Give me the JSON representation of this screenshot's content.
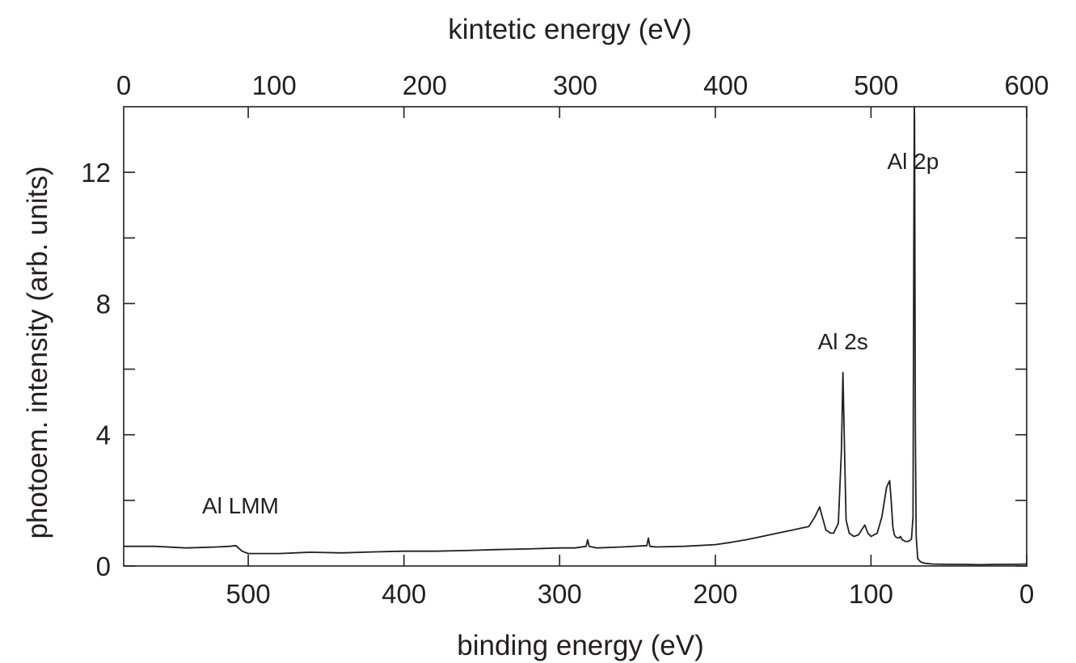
{
  "chart_data": {
    "type": "line",
    "title": "",
    "xlabel": "binding energy  (eV)",
    "x2label": "kintetic energy  (eV)",
    "ylabel": "photoem. intensity (arb. units)",
    "xlim": [
      580,
      0
    ],
    "x2lim": [
      0,
      600
    ],
    "ylim": [
      0,
      14
    ],
    "xticks": [
      "500",
      "400",
      "300",
      "200",
      "100",
      "0"
    ],
    "x2ticks": [
      "0",
      "100",
      "200",
      "300",
      "400",
      "500",
      "600"
    ],
    "yticks": [
      "0",
      "4",
      "8",
      "12"
    ],
    "grid": false,
    "line_color": "#231f20",
    "annotations": [
      {
        "text": "Al LMM",
        "x": 505,
        "y": 1.6
      },
      {
        "text": "Al 2s",
        "x": 118,
        "y": 6.6
      },
      {
        "text": "Al 2p",
        "x": 73,
        "y": 12.1
      }
    ],
    "series": [
      {
        "x": [
          580,
          560,
          540,
          520,
          512,
          508,
          504,
          500,
          480,
          460,
          440,
          420,
          400,
          380,
          360,
          340,
          320,
          300,
          290,
          283,
          282,
          281,
          276,
          260,
          244,
          243,
          242,
          238,
          220,
          200,
          190,
          180,
          170,
          160,
          150,
          145,
          140,
          136,
          133,
          131,
          129,
          126,
          124,
          121,
          119,
          118,
          117,
          116,
          114,
          111,
          108,
          104,
          102,
          100,
          96,
          93,
          90,
          88,
          87,
          86,
          85,
          84,
          82,
          81,
          80,
          78,
          76,
          74,
          73,
          72.8,
          72.5,
          72.2,
          72,
          71.5,
          71,
          70,
          68,
          65,
          60,
          50,
          40,
          30,
          20,
          10,
          0
        ],
        "y": [
          0.6,
          0.6,
          0.55,
          0.58,
          0.6,
          0.62,
          0.45,
          0.38,
          0.38,
          0.42,
          0.4,
          0.43,
          0.45,
          0.45,
          0.47,
          0.5,
          0.52,
          0.55,
          0.55,
          0.6,
          0.8,
          0.6,
          0.55,
          0.58,
          0.62,
          0.85,
          0.6,
          0.58,
          0.6,
          0.65,
          0.72,
          0.8,
          0.9,
          1.0,
          1.1,
          1.15,
          1.2,
          1.5,
          1.8,
          1.45,
          1.1,
          1.0,
          1.0,
          1.3,
          3.5,
          5.9,
          3.5,
          1.4,
          1.0,
          0.9,
          0.95,
          1.25,
          1.0,
          0.9,
          1.0,
          1.5,
          2.4,
          2.6,
          2.0,
          1.2,
          0.95,
          0.88,
          0.85,
          0.9,
          0.8,
          0.75,
          0.75,
          0.82,
          1.5,
          5.0,
          10.0,
          14.0,
          13.6,
          4.0,
          0.9,
          0.22,
          0.12,
          0.08,
          0.06,
          0.05,
          0.05,
          0.04,
          0.05,
          0.05,
          0.06
        ]
      }
    ]
  }
}
